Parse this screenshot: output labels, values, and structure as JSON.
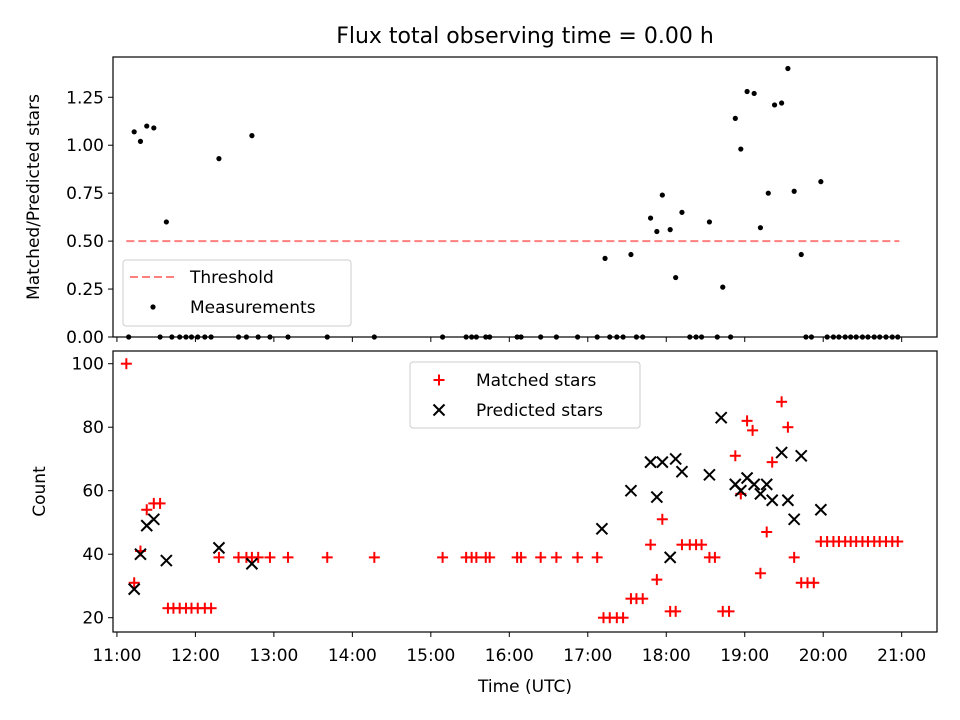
{
  "figure_title": "Flux total observing time = 0.00 h",
  "colors": {
    "threshold": "#ff7f7f",
    "measurements": "#000000",
    "matched": "#ff0000",
    "predicted": "#000000"
  },
  "chart_data": [
    {
      "type": "scatter",
      "title": "Flux total observing time = 0.00 h",
      "ylabel": "Matched/Predicted stars",
      "xlabel": "",
      "xlim": [
        10.95,
        21.45
      ],
      "ylim": [
        0,
        1.46
      ],
      "yticks": [
        0.0,
        0.25,
        0.5,
        0.75,
        1.0,
        1.25
      ],
      "ytick_labels": [
        "0.00",
        "0.25",
        "0.50",
        "0.75",
        "1.00",
        "1.25"
      ],
      "legend_position": "lower-left",
      "threshold": {
        "name": "Threshold",
        "value": 0.5,
        "x_range": [
          11.12,
          20.97
        ]
      },
      "series": [
        {
          "name": "Measurements",
          "points": [
            [
              11.22,
              1.07
            ],
            [
              11.3,
              1.02
            ],
            [
              11.38,
              1.1
            ],
            [
              11.47,
              1.09
            ],
            [
              11.63,
              0.6
            ],
            [
              12.3,
              0.93
            ],
            [
              12.72,
              1.05
            ],
            [
              17.22,
              0.41
            ],
            [
              17.55,
              0.43
            ],
            [
              17.8,
              0.62
            ],
            [
              17.88,
              0.55
            ],
            [
              17.95,
              0.74
            ],
            [
              18.05,
              0.56
            ],
            [
              18.12,
              0.31
            ],
            [
              18.2,
              0.65
            ],
            [
              18.55,
              0.6
            ],
            [
              18.72,
              0.26
            ],
            [
              18.88,
              1.14
            ],
            [
              18.95,
              0.98
            ],
            [
              19.03,
              1.28
            ],
            [
              19.12,
              1.27
            ],
            [
              19.2,
              0.57
            ],
            [
              19.3,
              0.75
            ],
            [
              19.38,
              1.21
            ],
            [
              19.47,
              1.22
            ],
            [
              19.55,
              1.4
            ],
            [
              19.63,
              0.76
            ],
            [
              19.72,
              0.43
            ],
            [
              19.97,
              0.81
            ],
            [
              11.15,
              0
            ],
            [
              11.55,
              0
            ],
            [
              11.7,
              0
            ],
            [
              11.8,
              0
            ],
            [
              11.88,
              0
            ],
            [
              11.95,
              0
            ],
            [
              12.03,
              0
            ],
            [
              12.12,
              0
            ],
            [
              12.2,
              0
            ],
            [
              12.55,
              0
            ],
            [
              12.65,
              0
            ],
            [
              12.8,
              0
            ],
            [
              12.95,
              0
            ],
            [
              13.18,
              0
            ],
            [
              13.68,
              0
            ],
            [
              14.28,
              0
            ],
            [
              15.15,
              0
            ],
            [
              15.45,
              0
            ],
            [
              15.52,
              0
            ],
            [
              15.58,
              0
            ],
            [
              15.7,
              0
            ],
            [
              15.75,
              0
            ],
            [
              16.1,
              0
            ],
            [
              16.15,
              0
            ],
            [
              16.4,
              0
            ],
            [
              16.6,
              0
            ],
            [
              16.87,
              0
            ],
            [
              17.12,
              0
            ],
            [
              17.28,
              0
            ],
            [
              17.37,
              0
            ],
            [
              17.45,
              0
            ],
            [
              17.62,
              0
            ],
            [
              17.7,
              0
            ],
            [
              18.3,
              0
            ],
            [
              18.38,
              0
            ],
            [
              18.45,
              0
            ],
            [
              18.65,
              0
            ],
            [
              18.82,
              0
            ],
            [
              19.78,
              0
            ],
            [
              19.85,
              0
            ],
            [
              20.05,
              0
            ],
            [
              20.13,
              0
            ],
            [
              20.2,
              0
            ],
            [
              20.28,
              0
            ],
            [
              20.35,
              0
            ],
            [
              20.42,
              0
            ],
            [
              20.5,
              0
            ],
            [
              20.57,
              0
            ],
            [
              20.65,
              0
            ],
            [
              20.72,
              0
            ],
            [
              20.8,
              0
            ],
            [
              20.88,
              0
            ],
            [
              20.95,
              0
            ]
          ]
        }
      ]
    },
    {
      "type": "scatter",
      "title": "",
      "xlabel": "Time (UTC)",
      "ylabel": "Count",
      "xlim": [
        10.95,
        21.45
      ],
      "ylim": [
        15.5,
        104
      ],
      "xticks": [
        11,
        12,
        13,
        14,
        15,
        16,
        17,
        18,
        19,
        20,
        21
      ],
      "xtick_labels": [
        "11:00",
        "12:00",
        "13:00",
        "14:00",
        "15:00",
        "16:00",
        "17:00",
        "18:00",
        "19:00",
        "20:00",
        "21:00"
      ],
      "yticks": [
        20,
        40,
        60,
        80,
        100
      ],
      "ytick_labels": [
        "20",
        "40",
        "60",
        "80",
        "100"
      ],
      "legend_position": "top-center",
      "series": [
        {
          "name": "Matched stars",
          "marker": "+",
          "points": [
            [
              11.12,
              100
            ],
            [
              11.22,
              31
            ],
            [
              11.3,
              41
            ],
            [
              11.38,
              54
            ],
            [
              11.47,
              56
            ],
            [
              11.55,
              56
            ],
            [
              11.65,
              23
            ],
            [
              11.72,
              23
            ],
            [
              11.8,
              23
            ],
            [
              11.88,
              23
            ],
            [
              11.95,
              23
            ],
            [
              12.03,
              23
            ],
            [
              12.12,
              23
            ],
            [
              12.2,
              23
            ],
            [
              12.3,
              39
            ],
            [
              12.55,
              39
            ],
            [
              12.65,
              39
            ],
            [
              12.72,
              39
            ],
            [
              12.8,
              39
            ],
            [
              12.95,
              39
            ],
            [
              13.18,
              39
            ],
            [
              13.68,
              39
            ],
            [
              14.28,
              39
            ],
            [
              15.15,
              39
            ],
            [
              15.45,
              39
            ],
            [
              15.52,
              39
            ],
            [
              15.58,
              39
            ],
            [
              15.7,
              39
            ],
            [
              15.75,
              39
            ],
            [
              16.1,
              39
            ],
            [
              16.15,
              39
            ],
            [
              16.4,
              39
            ],
            [
              16.6,
              39
            ],
            [
              16.87,
              39
            ],
            [
              17.12,
              39
            ],
            [
              17.2,
              20
            ],
            [
              17.28,
              20
            ],
            [
              17.37,
              20
            ],
            [
              17.45,
              20
            ],
            [
              17.55,
              26
            ],
            [
              17.62,
              26
            ],
            [
              17.7,
              26
            ],
            [
              17.8,
              43
            ],
            [
              17.88,
              32
            ],
            [
              17.95,
              51
            ],
            [
              18.05,
              22
            ],
            [
              18.12,
              22
            ],
            [
              18.2,
              43
            ],
            [
              18.3,
              43
            ],
            [
              18.38,
              43
            ],
            [
              18.45,
              43
            ],
            [
              18.55,
              39
            ],
            [
              18.62,
              39
            ],
            [
              18.72,
              22
            ],
            [
              18.8,
              22
            ],
            [
              18.88,
              71
            ],
            [
              18.95,
              59
            ],
            [
              19.03,
              82
            ],
            [
              19.1,
              79
            ],
            [
              19.2,
              34
            ],
            [
              19.28,
              47
            ],
            [
              19.35,
              69
            ],
            [
              19.47,
              88
            ],
            [
              19.55,
              80
            ],
            [
              19.63,
              39
            ],
            [
              19.72,
              31
            ],
            [
              19.8,
              31
            ],
            [
              19.88,
              31
            ],
            [
              19.97,
              44
            ],
            [
              20.05,
              44
            ],
            [
              20.13,
              44
            ],
            [
              20.2,
              44
            ],
            [
              20.28,
              44
            ],
            [
              20.35,
              44
            ],
            [
              20.42,
              44
            ],
            [
              20.5,
              44
            ],
            [
              20.57,
              44
            ],
            [
              20.65,
              44
            ],
            [
              20.72,
              44
            ],
            [
              20.8,
              44
            ],
            [
              20.88,
              44
            ],
            [
              20.95,
              44
            ]
          ]
        },
        {
          "name": "Predicted stars",
          "marker": "x",
          "points": [
            [
              11.22,
              29
            ],
            [
              11.3,
              40
            ],
            [
              11.38,
              49
            ],
            [
              11.47,
              51
            ],
            [
              11.63,
              38
            ],
            [
              12.3,
              42
            ],
            [
              12.72,
              37
            ],
            [
              17.18,
              48
            ],
            [
              17.55,
              60
            ],
            [
              17.8,
              69
            ],
            [
              17.88,
              58
            ],
            [
              17.95,
              69
            ],
            [
              18.05,
              39
            ],
            [
              18.12,
              70
            ],
            [
              18.2,
              66
            ],
            [
              18.55,
              65
            ],
            [
              18.7,
              83
            ],
            [
              18.88,
              62
            ],
            [
              18.95,
              60
            ],
            [
              19.03,
              64
            ],
            [
              19.12,
              62
            ],
            [
              19.2,
              59
            ],
            [
              19.28,
              62
            ],
            [
              19.35,
              57
            ],
            [
              19.47,
              72
            ],
            [
              19.55,
              57
            ],
            [
              19.63,
              51
            ],
            [
              19.72,
              71
            ],
            [
              19.97,
              54
            ]
          ]
        }
      ]
    }
  ]
}
